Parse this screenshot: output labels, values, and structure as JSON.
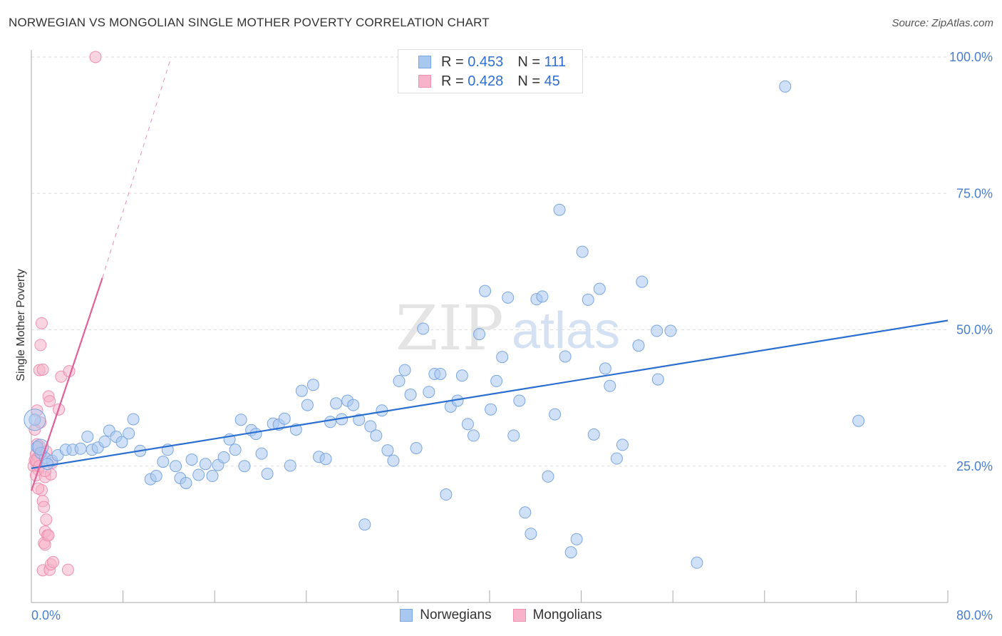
{
  "header": {
    "title": "NORWEGIAN VS MONGOLIAN SINGLE MOTHER POVERTY CORRELATION CHART",
    "source": "Source: ZipAtlas.com"
  },
  "legend": {
    "rows": [
      {
        "r_label": "R =",
        "r_value": "0.453",
        "n_label": "N =",
        "n_value": "111"
      },
      {
        "r_label": "R =",
        "r_value": "0.428",
        "n_label": "N =",
        "n_value": "45"
      }
    ]
  },
  "bottom_legend": {
    "norwegians": "Norwegians",
    "mongolians": "Mongolians"
  },
  "watermark": {
    "zip": "ZIP",
    "atlas": "atlas"
  },
  "colors": {
    "blue_fill": "#a9c8f0",
    "blue_stroke": "#7aa6e0",
    "blue_line": "#2a6fd0",
    "pink_fill": "#f6b3c9",
    "pink_stroke": "#ee90b0",
    "pink_line": "#e0609a",
    "tick_text": "#4a7fd0",
    "grid": "#dddddd"
  },
  "chart_data": {
    "type": "scatter",
    "title": "NORWEGIAN VS MONGOLIAN SINGLE MOTHER POVERTY CORRELATION CHART",
    "xlabel": "",
    "ylabel": "Single Mother Poverty",
    "xlim": [
      0,
      80
    ],
    "ylim": [
      0,
      105
    ],
    "x_tick_labels": [
      "0.0%",
      "80.0%"
    ],
    "y_ticks": [
      25,
      50,
      75,
      100
    ],
    "y_tick_labels": [
      "25.0%",
      "50.0%",
      "75.0%",
      "100.0%"
    ],
    "grid": true,
    "legend_position": "top-center",
    "series": [
      {
        "name": "Norwegians",
        "R": 0.453,
        "N": 111,
        "trend": {
          "x0": 0,
          "y0": 24.6,
          "x1": 80,
          "y1": 51.7
        },
        "points": [
          [
            0.5,
            28.5
          ],
          [
            1.2,
            26.5
          ],
          [
            1.8,
            26.0
          ],
          [
            2.3,
            27.0
          ],
          [
            3.0,
            28.0
          ],
          [
            3.6,
            28.0
          ],
          [
            4.3,
            28.2
          ],
          [
            4.9,
            30.4
          ],
          [
            5.3,
            28.0
          ],
          [
            5.8,
            28.4
          ],
          [
            6.4,
            29.5
          ],
          [
            6.8,
            31.5
          ],
          [
            7.4,
            30.4
          ],
          [
            7.9,
            29.4
          ],
          [
            8.5,
            31.0
          ],
          [
            8.9,
            33.6
          ],
          [
            9.5,
            27.8
          ],
          [
            10.4,
            22.6
          ],
          [
            10.9,
            23.2
          ],
          [
            11.5,
            25.8
          ],
          [
            11.9,
            28.0
          ],
          [
            12.6,
            25.0
          ],
          [
            13.0,
            22.8
          ],
          [
            13.5,
            21.9
          ],
          [
            14.0,
            26.2
          ],
          [
            14.6,
            23.4
          ],
          [
            15.2,
            25.4
          ],
          [
            15.8,
            23.2
          ],
          [
            16.3,
            25.2
          ],
          [
            16.8,
            26.6
          ],
          [
            17.3,
            29.9
          ],
          [
            17.8,
            28.0
          ],
          [
            18.3,
            33.5
          ],
          [
            18.6,
            25.0
          ],
          [
            19.2,
            31.6
          ],
          [
            19.6,
            30.9
          ],
          [
            20.1,
            27.3
          ],
          [
            20.6,
            23.6
          ],
          [
            21.1,
            32.8
          ],
          [
            21.6,
            32.6
          ],
          [
            22.1,
            33.7
          ],
          [
            22.6,
            25.1
          ],
          [
            23.1,
            31.7
          ],
          [
            23.6,
            38.8
          ],
          [
            24.1,
            36.2
          ],
          [
            24.6,
            39.9
          ],
          [
            25.1,
            26.7
          ],
          [
            25.7,
            26.3
          ],
          [
            26.1,
            33.1
          ],
          [
            26.6,
            36.5
          ],
          [
            27.1,
            33.6
          ],
          [
            27.6,
            37.0
          ],
          [
            28.1,
            36.2
          ],
          [
            28.6,
            33.5
          ],
          [
            29.1,
            14.3
          ],
          [
            29.6,
            32.3
          ],
          [
            30.1,
            30.6
          ],
          [
            30.6,
            35.2
          ],
          [
            31.1,
            27.9
          ],
          [
            31.6,
            26.0
          ],
          [
            32.1,
            40.6
          ],
          [
            32.6,
            42.6
          ],
          [
            33.1,
            38.1
          ],
          [
            33.6,
            28.3
          ],
          [
            34.2,
            50.2
          ],
          [
            34.7,
            38.6
          ],
          [
            35.2,
            41.9
          ],
          [
            35.7,
            41.9
          ],
          [
            36.2,
            19.8
          ],
          [
            36.6,
            35.9
          ],
          [
            37.2,
            37.0
          ],
          [
            37.6,
            41.6
          ],
          [
            38.1,
            32.7
          ],
          [
            38.6,
            30.6
          ],
          [
            39.1,
            49.2
          ],
          [
            39.6,
            57.1
          ],
          [
            40.1,
            35.4
          ],
          [
            40.6,
            40.6
          ],
          [
            41.1,
            45.0
          ],
          [
            41.6,
            55.9
          ],
          [
            42.1,
            30.6
          ],
          [
            42.6,
            37.0
          ],
          [
            43.1,
            16.5
          ],
          [
            43.6,
            12.6
          ],
          [
            44.1,
            55.6
          ],
          [
            44.6,
            56.1
          ],
          [
            45.1,
            23.1
          ],
          [
            45.7,
            34.5
          ],
          [
            46.1,
            72.0
          ],
          [
            46.6,
            45.1
          ],
          [
            47.1,
            9.2
          ],
          [
            47.6,
            11.6
          ],
          [
            48.1,
            64.3
          ],
          [
            48.6,
            55.5
          ],
          [
            49.1,
            30.8
          ],
          [
            49.6,
            57.5
          ],
          [
            50.1,
            42.9
          ],
          [
            50.5,
            39.7
          ],
          [
            51.1,
            26.4
          ],
          [
            51.6,
            28.9
          ],
          [
            53.0,
            47.1
          ],
          [
            53.3,
            58.8
          ],
          [
            54.6,
            49.8
          ],
          [
            55.8,
            49.8
          ],
          [
            54.7,
            40.9
          ],
          [
            58.1,
            7.3
          ],
          [
            65.8,
            94.6
          ],
          [
            72.2,
            33.3
          ],
          [
            0.3,
            33.5
          ],
          [
            0.8,
            27.4
          ],
          [
            1.4,
            25.4
          ]
        ]
      },
      {
        "name": "Mongolians",
        "R": 0.428,
        "N": 45,
        "trend": {
          "x0": 0,
          "y0": 20.5,
          "x1": 6.2,
          "y1": 59.5,
          "dashed_to": {
            "x": 12.2,
            "y": 100.0
          }
        },
        "points": [
          [
            0.2,
            25.0
          ],
          [
            0.3,
            26.1
          ],
          [
            0.4,
            27.2
          ],
          [
            0.5,
            25.6
          ],
          [
            0.6,
            24.3
          ],
          [
            0.7,
            28.7
          ],
          [
            0.3,
            31.7
          ],
          [
            0.5,
            35.2
          ],
          [
            0.6,
            26.7
          ],
          [
            0.8,
            27.5
          ],
          [
            0.4,
            23.3
          ],
          [
            0.9,
            20.6
          ],
          [
            0.7,
            42.6
          ],
          [
            0.8,
            47.2
          ],
          [
            0.9,
            51.2
          ],
          [
            0.6,
            20.9
          ],
          [
            1.0,
            18.6
          ],
          [
            1.1,
            17.5
          ],
          [
            1.2,
            23.0
          ],
          [
            1.3,
            15.2
          ],
          [
            1.2,
            13.0
          ],
          [
            1.4,
            12.3
          ],
          [
            1.1,
            10.9
          ],
          [
            1.2,
            10.6
          ],
          [
            1.0,
            5.9
          ],
          [
            1.6,
            6.0
          ],
          [
            1.7,
            7.0
          ],
          [
            1.5,
            37.8
          ],
          [
            1.6,
            36.9
          ],
          [
            1.8,
            25.6
          ],
          [
            1.7,
            23.5
          ],
          [
            2.4,
            35.4
          ],
          [
            2.6,
            41.4
          ],
          [
            3.3,
            42.4
          ],
          [
            3.2,
            6.0
          ],
          [
            1.5,
            12.3
          ],
          [
            1.9,
            7.4
          ],
          [
            0.5,
            29.0
          ],
          [
            0.8,
            33.0
          ],
          [
            1.0,
            42.7
          ],
          [
            0.4,
            26.0
          ],
          [
            0.7,
            25.0
          ],
          [
            1.2,
            24.1
          ],
          [
            1.3,
            27.7
          ],
          [
            5.6,
            100.0
          ]
        ]
      }
    ]
  }
}
